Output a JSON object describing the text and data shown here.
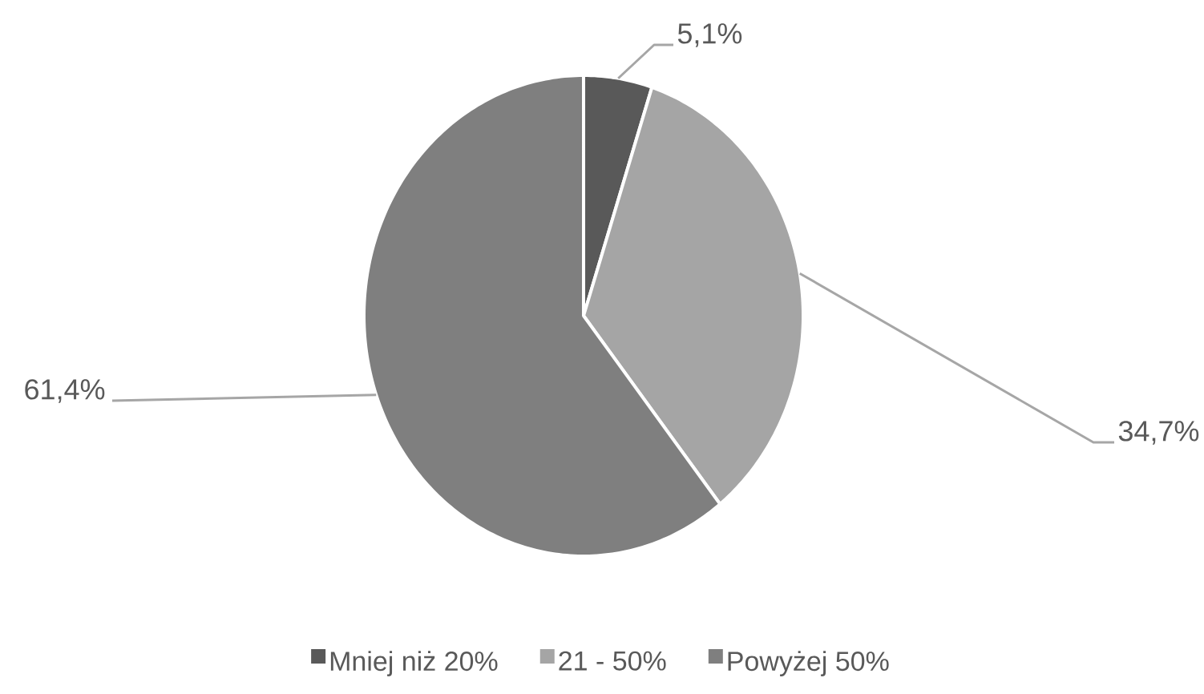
{
  "chart_data": {
    "type": "pie",
    "categories": [
      "Mniej niż 20%",
      "21 - 50%",
      "Powyżej 50%"
    ],
    "values": [
      5.1,
      34.7,
      61.4
    ],
    "colors": [
      "#595959",
      "#a5a5a5",
      "#7f7f7f"
    ],
    "value_labels": [
      "5,1%",
      "34,7%",
      "61,4%"
    ],
    "legend": "bottom"
  }
}
